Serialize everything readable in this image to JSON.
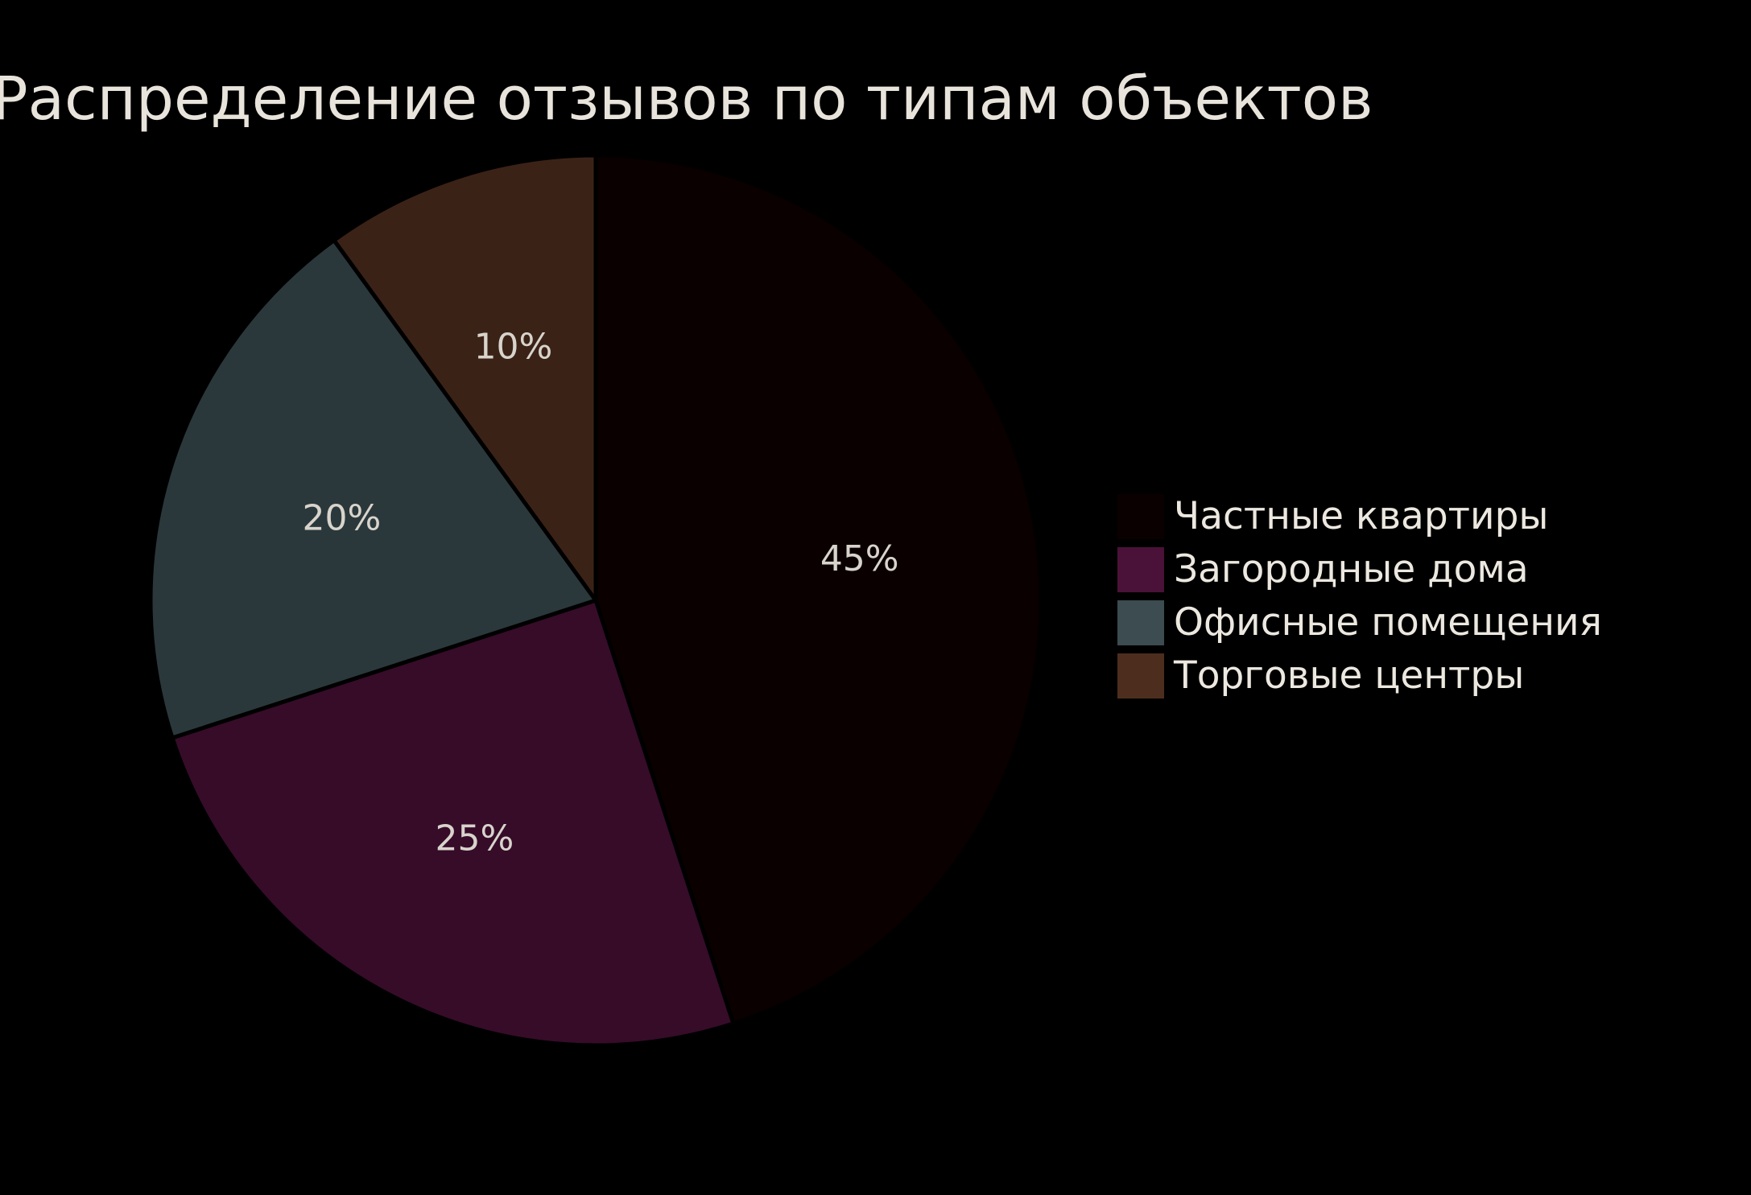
{
  "chart_data": {
    "type": "pie",
    "title": "Распределение отзывов по типам объектов",
    "slices": [
      {
        "name": "Частные квартиры",
        "value": 45,
        "label": "45%",
        "color": "#0a0000",
        "legend_color": "#0a0000"
      },
      {
        "name": "Загородные дома",
        "value": 25,
        "label": "25%",
        "color": "#360c29",
        "legend_color": "#4a1238"
      },
      {
        "name": "Офисные помещения",
        "value": 20,
        "label": "20%",
        "color": "#2b383b",
        "legend_color": "#3c4c50"
      },
      {
        "name": "Торговые центры",
        "value": 10,
        "label": "10%",
        "color": "#3b2217",
        "legend_color": "#4d2e1e"
      }
    ],
    "start_angle": "12 o'clock",
    "direction": "clockwise",
    "legend_position": "right",
    "slice_border_color": "#000000"
  }
}
